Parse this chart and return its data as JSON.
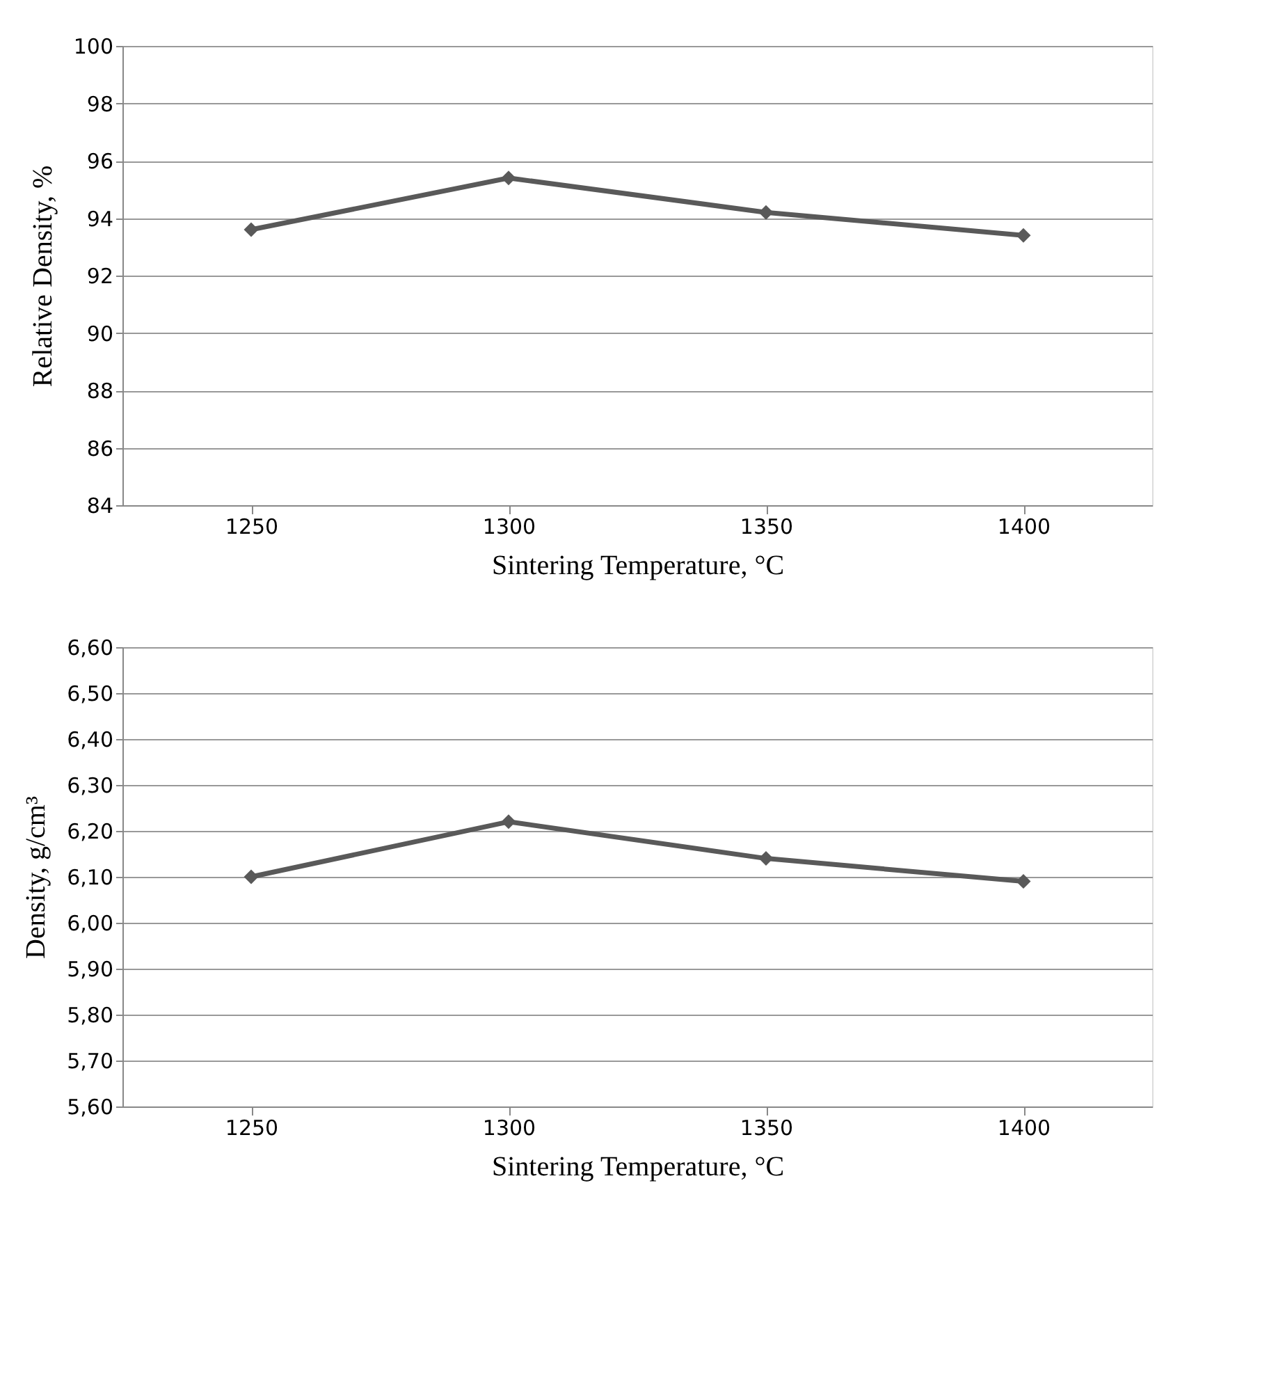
{
  "chart_data": [
    {
      "type": "line",
      "categories": [
        "1250",
        "1300",
        "1350",
        "1400"
      ],
      "xlabel": "Sintering Temperature, °C",
      "ylabel": "Relative Density, %",
      "ylim": [
        84,
        100
      ],
      "yticks": [
        84,
        86,
        88,
        90,
        92,
        94,
        96,
        98,
        100
      ],
      "grid": "y",
      "marker": "diamond",
      "line_style": "solid",
      "series": [
        {
          "color": "#595959",
          "values": [
            93.6,
            95.4,
            94.2,
            93.4
          ]
        }
      ]
    },
    {
      "type": "line",
      "categories": [
        "1250",
        "1300",
        "1350",
        "1400"
      ],
      "xlabel": "Sintering Temperature, °C",
      "ylabel": "Density, g/cm³",
      "ylim": [
        5.6,
        6.6
      ],
      "yticks": [
        {
          "value": 5.6,
          "label": "5,60"
        },
        {
          "value": 5.7,
          "label": "5,70"
        },
        {
          "value": 5.8,
          "label": "5,80"
        },
        {
          "value": 5.9,
          "label": "5,90"
        },
        {
          "value": 6.0,
          "label": "6,00"
        },
        {
          "value": 6.1,
          "label": "6,10"
        },
        {
          "value": 6.2,
          "label": "6,20"
        },
        {
          "value": 6.3,
          "label": "6,30"
        },
        {
          "value": 6.4,
          "label": "6,40"
        },
        {
          "value": 6.5,
          "label": "6,50"
        },
        {
          "value": 6.6,
          "label": "6,60"
        }
      ],
      "grid": "y",
      "marker": "diamond",
      "line_style": "solid",
      "series": [
        {
          "color": "#595959",
          "values": [
            6.1,
            6.22,
            6.14,
            6.09
          ]
        }
      ]
    }
  ]
}
